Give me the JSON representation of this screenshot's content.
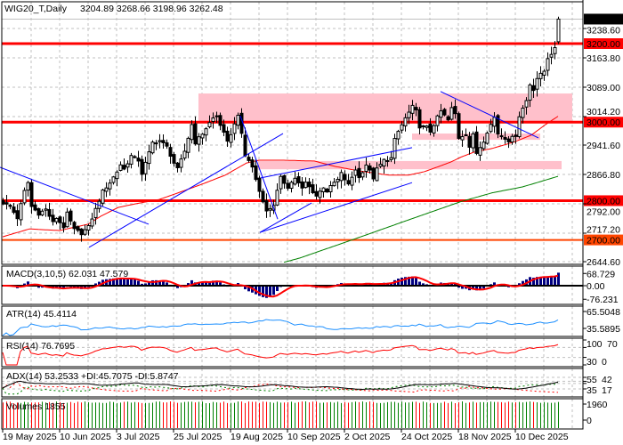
{
  "header": {
    "symbol_timeframe": "WIG20_T,Daily",
    "ohlc": "3204.89 3268.66 3198.96 3262.48"
  },
  "colors": {
    "level_red": "#ff0000",
    "level_orange": "#ff4500",
    "zone_pink": "#ffc0cb",
    "trendline_blue": "#0000ff",
    "ma_red": "#ff0000",
    "ma_green": "#008000",
    "macd_hist": "#000080",
    "atr_line": "#1e90ff",
    "volume_up": "#008000",
    "volume_down": "#ff0000"
  },
  "chart_data": {
    "type": "candlestick",
    "title": "WIG20_T,Daily",
    "bars": 157,
    "last_bar": {
      "open": 3204.89,
      "high": 3268.66,
      "low": 3198.96,
      "close": 3262.48
    },
    "close_anchors": [
      [
        0,
        2794
      ],
      [
        2,
        2785
      ],
      [
        4,
        2756
      ],
      [
        6,
        2824
      ],
      [
        7,
        2846
      ],
      [
        8,
        2785
      ],
      [
        10,
        2767
      ],
      [
        12,
        2778
      ],
      [
        14,
        2744
      ],
      [
        15,
        2756
      ],
      [
        17,
        2733
      ],
      [
        18,
        2767
      ],
      [
        20,
        2726
      ],
      [
        22,
        2717
      ],
      [
        24,
        2733
      ],
      [
        26,
        2778
      ],
      [
        27,
        2801
      ],
      [
        28,
        2824
      ],
      [
        30,
        2846
      ],
      [
        32,
        2874
      ],
      [
        33,
        2892
      ],
      [
        34,
        2880
      ],
      [
        36,
        2914
      ],
      [
        38,
        2903
      ],
      [
        39,
        2869
      ],
      [
        42,
        2948
      ],
      [
        44,
        2953
      ],
      [
        46,
        2937
      ],
      [
        48,
        2896
      ],
      [
        49,
        2880
      ],
      [
        51,
        2926
      ],
      [
        53,
        2994
      ],
      [
        54,
        2948
      ],
      [
        56,
        2971
      ],
      [
        58,
        2998
      ],
      [
        59,
        3010
      ],
      [
        60,
        3016
      ],
      [
        62,
        2971
      ],
      [
        63,
        2948
      ],
      [
        65,
        2994
      ],
      [
        66,
        3021
      ],
      [
        68,
        2914
      ],
      [
        69,
        2903
      ],
      [
        70,
        2885
      ],
      [
        72,
        2824
      ],
      [
        73,
        2801
      ],
      [
        74,
        2772
      ],
      [
        76,
        2790
      ],
      [
        77,
        2824
      ],
      [
        78,
        2858
      ],
      [
        79,
        2846
      ],
      [
        80,
        2835
      ],
      [
        82,
        2858
      ],
      [
        84,
        2830
      ],
      [
        85,
        2846
      ],
      [
        88,
        2812
      ],
      [
        90,
        2835
      ],
      [
        91,
        2824
      ],
      [
        93,
        2846
      ],
      [
        94,
        2853
      ],
      [
        95,
        2869
      ],
      [
        97,
        2840
      ],
      [
        99,
        2880
      ],
      [
        100,
        2858
      ],
      [
        102,
        2892
      ],
      [
        104,
        2858
      ],
      [
        105,
        2880
      ],
      [
        107,
        2903
      ],
      [
        109,
        2908
      ],
      [
        110,
        2955
      ],
      [
        111,
        2976
      ],
      [
        113,
        3010
      ],
      [
        115,
        3039
      ],
      [
        116,
        3028
      ],
      [
        117,
        2989
      ],
      [
        119,
        2987
      ],
      [
        120,
        2976
      ],
      [
        122,
        3012
      ],
      [
        123,
        3028
      ],
      [
        125,
        3005
      ],
      [
        126,
        3035
      ],
      [
        127,
        3021
      ],
      [
        128,
        2960
      ],
      [
        130,
        2971
      ],
      [
        131,
        2937
      ],
      [
        132,
        2967
      ],
      [
        133,
        2921
      ],
      [
        135,
        2953
      ],
      [
        136,
        2976
      ],
      [
        137,
        2994
      ],
      [
        138,
        3012
      ],
      [
        139,
        2971
      ],
      [
        141,
        2960
      ],
      [
        142,
        2953
      ],
      [
        144,
        2967
      ],
      [
        145,
        3016
      ],
      [
        147,
        3055
      ],
      [
        148,
        3096
      ],
      [
        149,
        3084
      ],
      [
        150,
        3112
      ],
      [
        152,
        3130
      ],
      [
        153,
        3164
      ],
      [
        154,
        3175
      ],
      [
        155,
        3186
      ],
      [
        156,
        3262.48
      ]
    ],
    "ma_red_anchors": [
      [
        0,
        2708
      ],
      [
        7.5,
        2728
      ],
      [
        16,
        2724
      ],
      [
        24,
        2740
      ],
      [
        27.5,
        2760
      ],
      [
        32.5,
        2783
      ],
      [
        38.5,
        2794
      ],
      [
        44,
        2803
      ],
      [
        49,
        2819
      ],
      [
        56,
        2842
      ],
      [
        62.5,
        2865
      ],
      [
        68.5,
        2896
      ],
      [
        72,
        2903
      ],
      [
        79,
        2903
      ],
      [
        87.5,
        2901
      ],
      [
        93.5,
        2887
      ],
      [
        100,
        2876
      ],
      [
        108.5,
        2865
      ],
      [
        114,
        2865
      ],
      [
        118.5,
        2874
      ],
      [
        122.5,
        2887
      ],
      [
        126,
        2899
      ],
      [
        129,
        2912
      ],
      [
        132.5,
        2924
      ],
      [
        137.5,
        2933
      ],
      [
        143.5,
        2949
      ],
      [
        148.5,
        2967
      ],
      [
        152.5,
        2994
      ],
      [
        156,
        3015
      ]
    ],
    "ma_green_anchors": [
      [
        79,
        2643
      ],
      [
        83.5,
        2654
      ],
      [
        100,
        2706
      ],
      [
        114,
        2751
      ],
      [
        128.5,
        2797
      ],
      [
        137.5,
        2820
      ],
      [
        146,
        2835
      ],
      [
        156,
        2862
      ]
    ],
    "price_axis": {
      "ticks": [
        {
          "price": 3238.6,
          "label": "3238.60"
        },
        {
          "price": 3163.8,
          "label": "3163.80"
        },
        {
          "price": 3089.0,
          "label": "3089.00"
        },
        {
          "price": 3014.2,
          "label": "3014.20"
        },
        {
          "price": 2941.6,
          "label": "2941.60"
        },
        {
          "price": 2866.8,
          "label": "2866.80"
        },
        {
          "price": 2792.0,
          "label": "2792.00"
        },
        {
          "price": 2717.2,
          "label": "2717.20"
        },
        {
          "price": 2644.6,
          "label": "2644.60"
        }
      ]
    },
    "current_price": {
      "price": 3262.48,
      "label": "3262.48"
    },
    "levels": [
      {
        "price": 3200,
        "label": "3200.00",
        "color": "#ff0000"
      },
      {
        "price": 3000,
        "label": "3000.00",
        "color": "#ff0000"
      },
      {
        "price": 2800,
        "label": "2800.00",
        "color": "#ff0000"
      },
      {
        "price": 2700,
        "label": "2700.00",
        "color": "#ff4500"
      }
    ],
    "zones": [
      {
        "from_idx": 55,
        "to_idx": 160,
        "low": 3000,
        "high": 3073
      },
      {
        "from_idx": 71.75,
        "to_idx": 157,
        "low": 2880,
        "high": 2901
      },
      {
        "from_idx": 115,
        "to_idx": 151,
        "low": 2955,
        "high": 2971
      }
    ],
    "trendlines": [
      {
        "from": [
          -0.75,
          2885
        ],
        "to": [
          41,
          2740
        ]
      },
      {
        "from": [
          24.25,
          2681
        ],
        "to": [
          78.75,
          2971
        ]
      },
      {
        "from": [
          66.75,
          3016
        ],
        "to": [
          77.25,
          2753
        ]
      },
      {
        "from": [
          72.25,
          2719
        ],
        "to": [
          86.75,
          2794
        ]
      },
      {
        "from": [
          72.5,
          2858
        ],
        "to": [
          115,
          2935
        ]
      },
      {
        "from": [
          72.25,
          2719
        ],
        "to": [
          115,
          2846
        ]
      },
      {
        "from": [
          123,
          3078
        ],
        "to": [
          150.5,
          2960
        ]
      }
    ],
    "x_labels": [
      {
        "idx": 0,
        "label": "19 May 2025"
      },
      {
        "idx": 16,
        "label": "10 Jun 2025"
      },
      {
        "idx": 32,
        "label": "3 Jul 2025"
      },
      {
        "idx": 48,
        "label": "25 Jul 2025"
      },
      {
        "idx": 64,
        "label": "19 Aug 2025"
      },
      {
        "idx": 80,
        "label": "10 Sep 2025"
      },
      {
        "idx": 96,
        "label": "2 Oct 2025"
      },
      {
        "idx": 112,
        "label": "24 Oct 2025"
      },
      {
        "idx": 128,
        "label": "18 Nov 2025"
      },
      {
        "idx": 144,
        "label": "10 Dec 2025"
      }
    ],
    "indicators": {
      "macd": {
        "label": "MACD(3,10,5) 62.031 47.579",
        "ticks": [
          {
            "v": 68.729,
            "label": "68.729"
          },
          {
            "v": 0,
            "label": "0.00"
          },
          {
            "v": -76.231,
            "label": "-76.231"
          }
        ]
      },
      "atr": {
        "label": "ATR(14) 45.4114",
        "ticks": [
          {
            "v": 65.5048,
            "label": "65.5048"
          },
          {
            "v": 35.5895,
            "label": "35.5895"
          }
        ]
      },
      "rsi": {
        "label": "RSI(14) 76.7695",
        "ticks": [
          {
            "v": 100,
            "label": "100"
          },
          {
            "v": 70,
            "label": "70"
          },
          {
            "v": 30,
            "label": "30"
          },
          {
            "v": 0,
            "label": "0"
          }
        ]
      },
      "adx": {
        "label": "ADX(14) 53.2533 +DI:45.7075 -DI:5.8747",
        "ticks": [
          {
            "v": 55,
            "label": "55"
          },
          {
            "v": 42,
            "label": "42"
          },
          {
            "v": 35,
            "label": "35"
          },
          {
            "v": 17,
            "label": "17"
          }
        ]
      },
      "volume": {
        "label": "Volumes 1855",
        "ticks": [
          {
            "v": 1960,
            "label": "1960"
          },
          {
            "v": 0,
            "label": "0"
          }
        ]
      }
    }
  }
}
